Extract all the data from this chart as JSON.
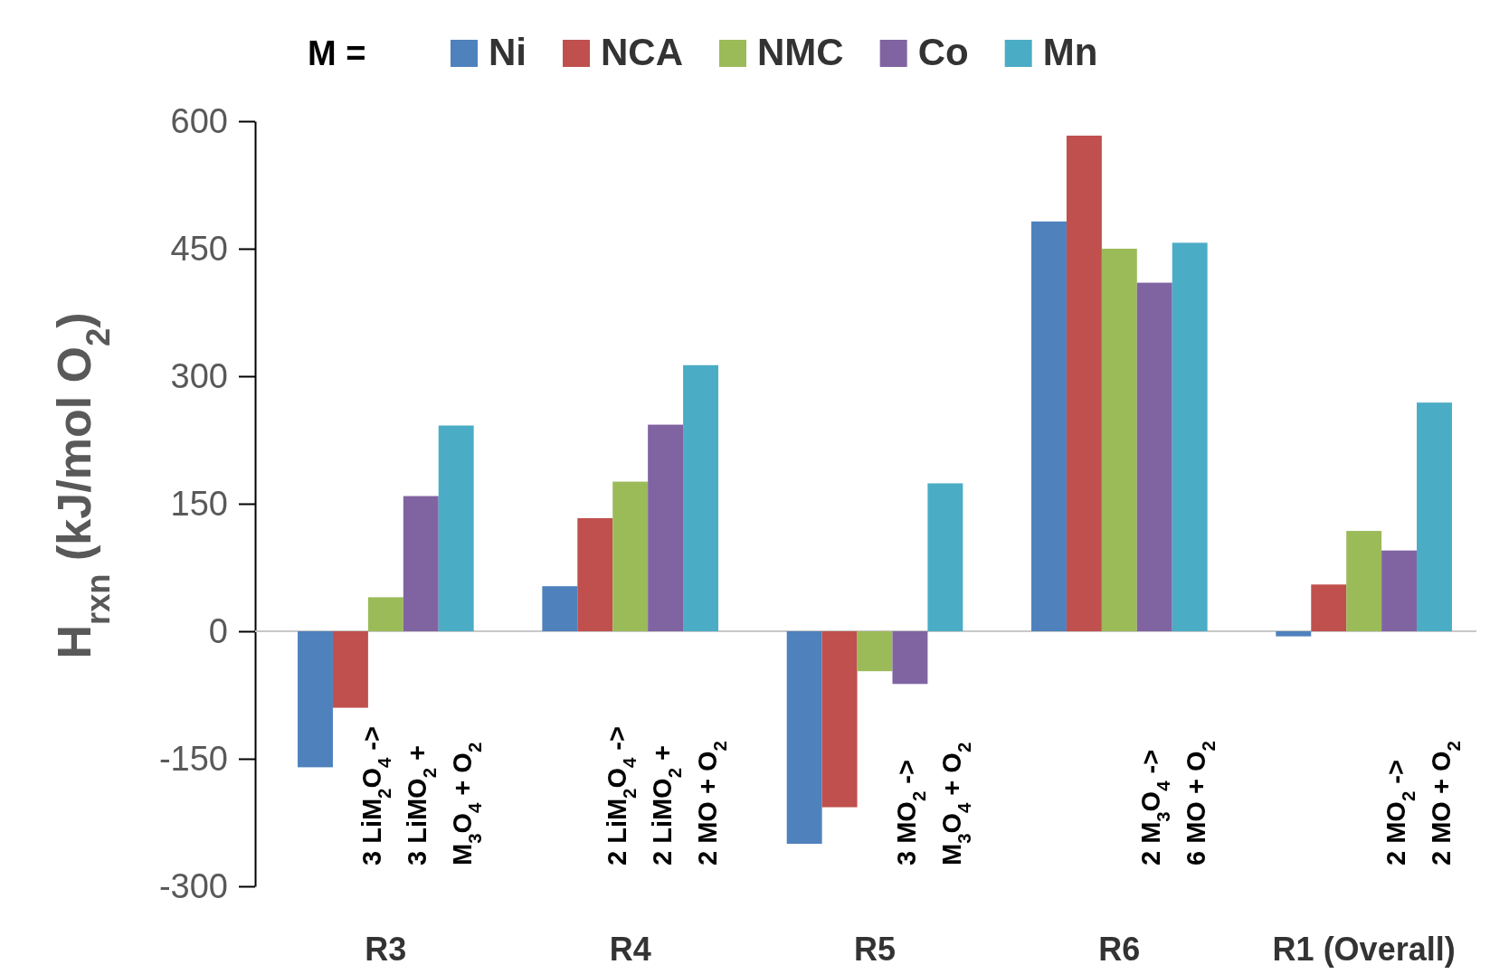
{
  "chart_data": {
    "type": "bar",
    "categories": [
      "R3",
      "R4",
      "R5",
      "R6",
      "R1 (Overall)"
    ],
    "ylabel": "H$_{rxn}$ (kJ/mol O$_{2}$)",
    "legend_title": "M =",
    "legend": "top",
    "ylim": [
      -300,
      600
    ],
    "yticks": [
      -300,
      -150,
      0,
      150,
      300,
      450,
      600
    ],
    "grid": false,
    "ref_lines": [
      {
        "axis": "y",
        "value": 0,
        "color": "#c8c8c8"
      }
    ],
    "series": [
      {
        "name": "Ni",
        "color": "#4f81bd",
        "values": [
          -160,
          53,
          -250,
          482,
          -6
        ]
      },
      {
        "name": "NCA",
        "color": "#c0504d",
        "values": [
          -90,
          133,
          -207,
          583,
          55
        ]
      },
      {
        "name": "NMC",
        "color": "#9bbb59",
        "values": [
          40,
          176,
          -47,
          450,
          118
        ]
      },
      {
        "name": "Co",
        "color": "#8064a2",
        "values": [
          159,
          243,
          -62,
          410,
          95
        ]
      },
      {
        "name": "Mn",
        "color": "#4bacc6",
        "values": [
          242,
          313,
          174,
          457,
          269
        ]
      }
    ],
    "annotations": [
      "3 LiM$_{2}$O$_{4}$ ->\n3 LiMO$_{2}$ +\nM$_{3}$O$_{4}$ + O$_{2}$",
      "2 LiM$_{2}$O$_{4}$ ->\n2 LiMO$_{2}$ +\n2 MO + O$_{2}$",
      "3 MO$_{2}$ ->\nM$_{3}$O$_{4}$ + O$_{2}$",
      "2 M$_{3}$O$_{4}$ ->\n6 MO + O$_{2}$",
      "2 MO$_{2}$ ->\n2 MO + O$_{2}$"
    ]
  }
}
